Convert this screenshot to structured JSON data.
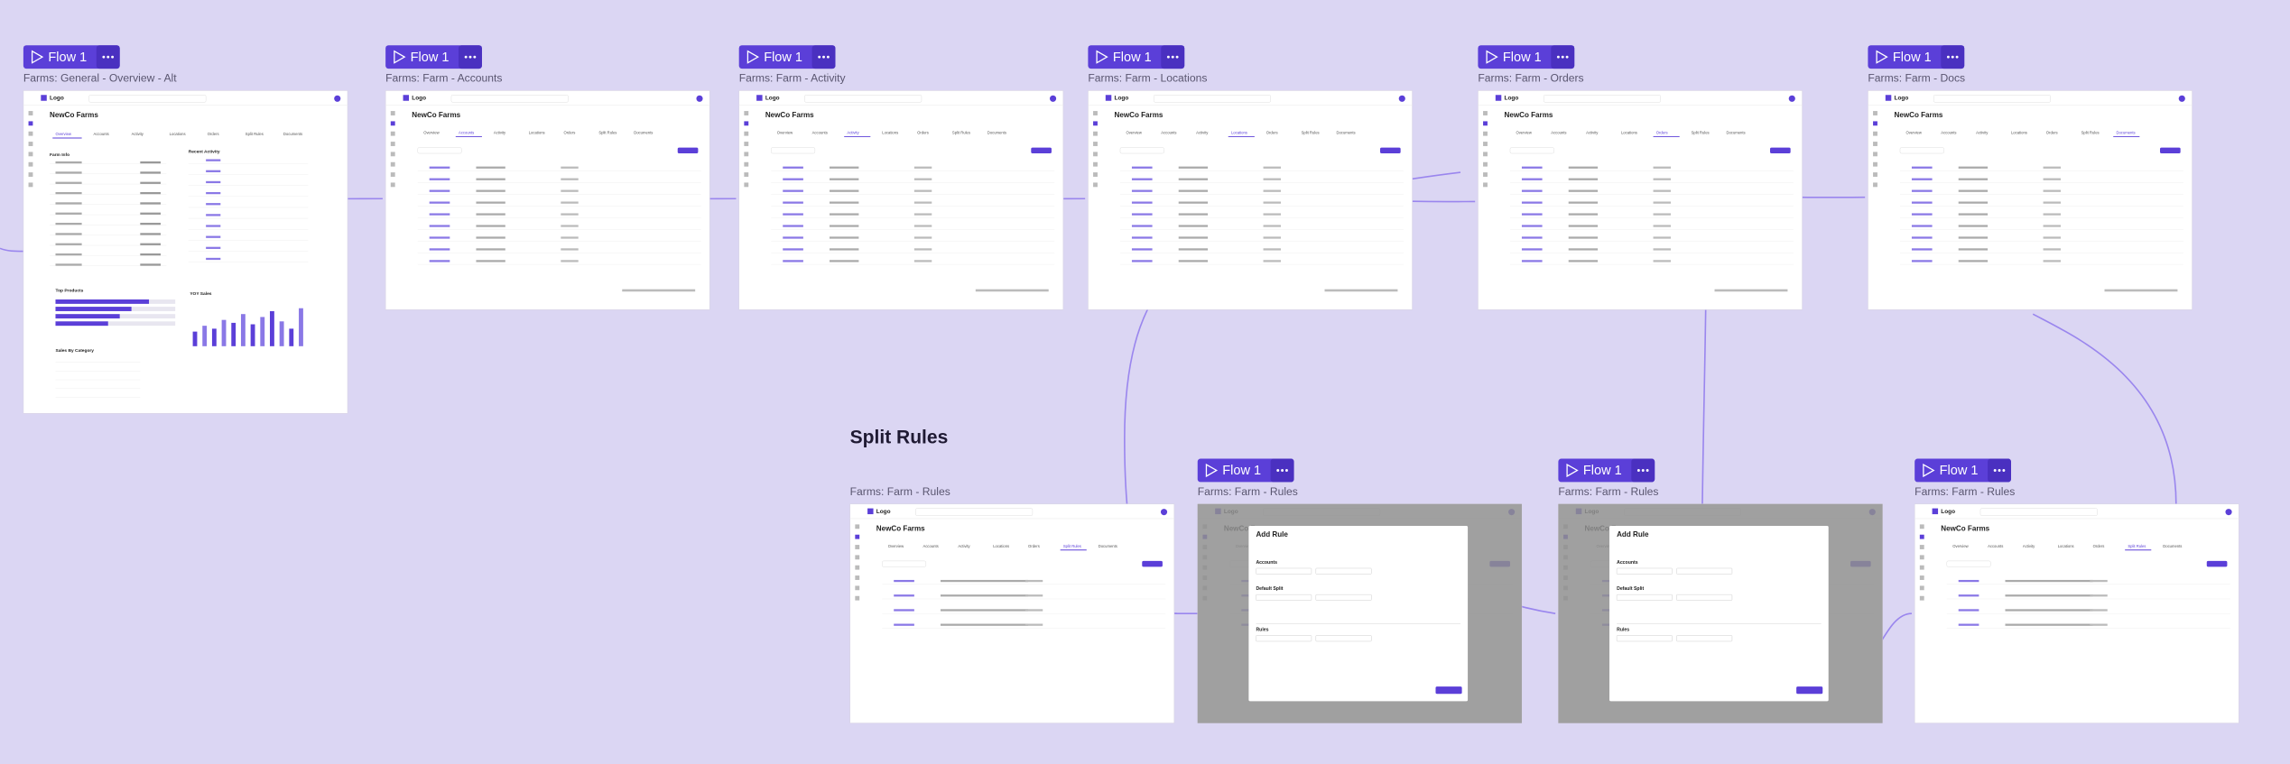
{
  "canvas": {
    "section_title": "Split Rules",
    "frames": [
      {
        "flow": "Flow 1",
        "title": "Farms: General - Overview - Alt",
        "panels": [
          "Farm Info",
          "Recent Activity",
          "Top Products",
          "YOY Sales",
          "Sales By Category"
        ]
      },
      {
        "flow": "Flow 1",
        "title": "Farms: Farm - Accounts"
      },
      {
        "flow": "Flow 1",
        "title": "Farms: Farm - Activity"
      },
      {
        "flow": "Flow 1",
        "title": "Farms: Farm - Locations"
      },
      {
        "flow": "Flow 1",
        "title": "Farms: Farm - Orders"
      },
      {
        "flow": "Flow 1",
        "title": "Farms: Farm - Docs"
      },
      {
        "title": "Farms: Farm - Rules"
      },
      {
        "flow": "Flow 1",
        "title": "Farms: Farm - Rules",
        "dialog": {
          "title": "Add Rule",
          "sections": [
            "Accounts",
            "Default Split",
            "Rules"
          ]
        }
      },
      {
        "flow": "Flow 1",
        "title": "Farms: Farm - Rules",
        "dialog": {
          "title": "Add Rule",
          "sections": [
            "Accounts",
            "Default Split",
            "Rules"
          ]
        }
      },
      {
        "flow": "Flow 1",
        "title": "Farms: Farm - Rules"
      }
    ]
  },
  "app": {
    "logo": "Logo",
    "org": "NewCo Farms",
    "tabs": [
      "Overview",
      "Accounts",
      "Activity",
      "Locations",
      "Orders",
      "Split Rules",
      "Documents"
    ]
  }
}
